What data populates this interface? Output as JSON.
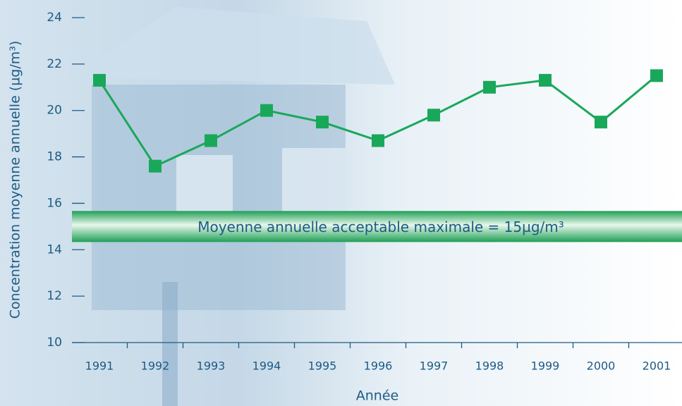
{
  "chart_data": {
    "type": "line",
    "y_label": "Concentration moyenne annuelle (µg/m³)",
    "x_label": "Année",
    "categories": [
      "1991",
      "1992",
      "1993",
      "1994",
      "1995",
      "1996",
      "1997",
      "1998",
      "1999",
      "2000",
      "2001"
    ],
    "values": [
      21.3,
      17.6,
      18.7,
      20.0,
      19.5,
      18.7,
      19.8,
      21.0,
      21.3,
      19.5,
      21.5
    ],
    "color": "#19a85a",
    "ylim": [
      10,
      24
    ],
    "yticks": [
      10,
      12,
      14,
      16,
      18,
      20,
      22,
      24
    ],
    "threshold": 15,
    "threshold_label": "Moyenne annuelle acceptable maximale = 15µg/m³"
  }
}
